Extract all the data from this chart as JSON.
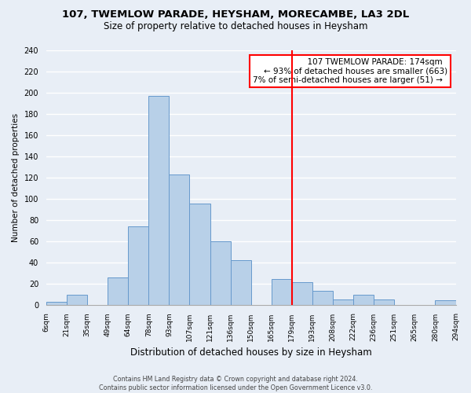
{
  "title": "107, TWEMLOW PARADE, HEYSHAM, MORECAMBE, LA3 2DL",
  "subtitle": "Size of property relative to detached houses in Heysham",
  "xlabel": "Distribution of detached houses by size in Heysham",
  "ylabel": "Number of detached properties",
  "bin_labels": [
    "6sqm",
    "21sqm",
    "35sqm",
    "49sqm",
    "64sqm",
    "78sqm",
    "93sqm",
    "107sqm",
    "121sqm",
    "136sqm",
    "150sqm",
    "165sqm",
    "179sqm",
    "193sqm",
    "208sqm",
    "222sqm",
    "236sqm",
    "251sqm",
    "265sqm",
    "280sqm",
    "294sqm"
  ],
  "bar_values": [
    3,
    9,
    0,
    26,
    74,
    197,
    123,
    95,
    60,
    42,
    0,
    24,
    21,
    13,
    5,
    9,
    5,
    0,
    0,
    4
  ],
  "bar_color": "#b8d0e8",
  "bar_edge_color": "#6699cc",
  "annotation_title": "107 TWEMLOW PARADE: 174sqm",
  "annotation_line1": "← 93% of detached houses are smaller (663)",
  "annotation_line2": "7% of semi-detached houses are larger (51) →",
  "ylim": [
    0,
    240
  ],
  "yticks": [
    0,
    20,
    40,
    60,
    80,
    100,
    120,
    140,
    160,
    180,
    200,
    220,
    240
  ],
  "footer_line1": "Contains HM Land Registry data © Crown copyright and database right 2024.",
  "footer_line2": "Contains public sector information licensed under the Open Government Licence v3.0.",
  "bg_color": "#e8eef6"
}
